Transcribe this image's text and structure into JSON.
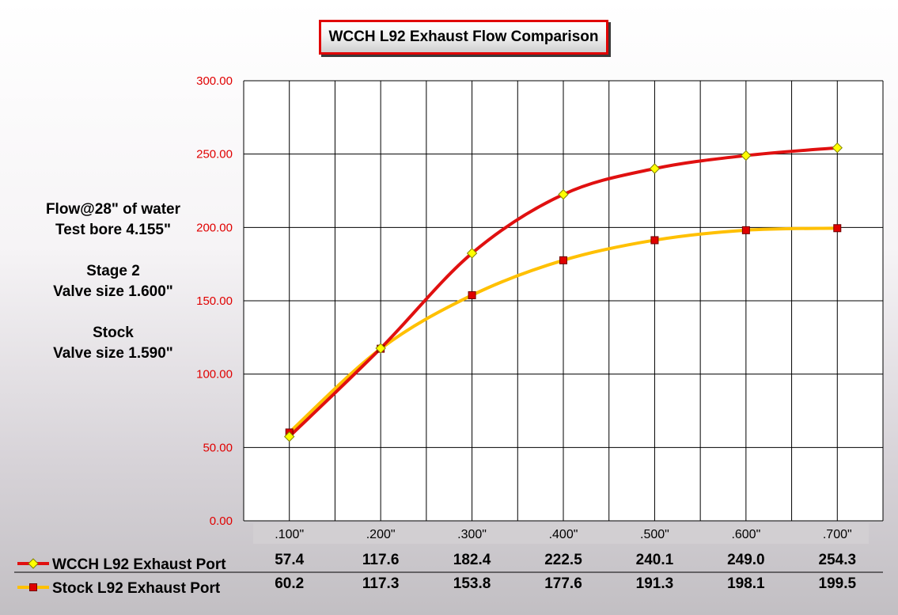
{
  "notes": {
    "line1": "Flow@28\" of water",
    "line2": "Test bore 4.155\"",
    "line3": "Stage 2",
    "line4": "Valve size 1.600\"",
    "line5": "Stock",
    "line6": "Valve size 1.590\""
  },
  "colors": {
    "wcch_line": "#e01010",
    "wcch_marker": "#ffff00",
    "stock_line": "#ffc000",
    "stock_marker": "#e00000",
    "axis_tick": "#e00000"
  },
  "chart_data": {
    "type": "line",
    "title": "WCCH L92 Exhaust Flow Comparison",
    "xlabel": "",
    "ylabel": "",
    "categories": [
      ".100\"",
      ".200\"",
      ".300\"",
      ".400\"",
      ".500\"",
      ".600\"",
      ".700\""
    ],
    "ylim": [
      0,
      300
    ],
    "yticks": [
      "0.00",
      "50.00",
      "100.00",
      "150.00",
      "200.00",
      "250.00",
      "300.00"
    ],
    "grid": true,
    "legend_placement": "bottom-left data table",
    "series": [
      {
        "name": "WCCH L92 Exhaust Port",
        "values": [
          57.4,
          117.6,
          182.4,
          222.5,
          240.1,
          249.0,
          254.3
        ],
        "labels": [
          "57.4",
          "117.6",
          "182.4",
          "222.5",
          "240.1",
          "249.0",
          "254.3"
        ],
        "marker": "diamond"
      },
      {
        "name": "Stock L92 Exhaust Port",
        "values": [
          60.2,
          117.3,
          153.8,
          177.6,
          191.3,
          198.1,
          199.5
        ],
        "labels": [
          "60.2",
          "117.3",
          "153.8",
          "177.6",
          "191.3",
          "198.1",
          "199.5"
        ],
        "marker": "square"
      }
    ]
  }
}
